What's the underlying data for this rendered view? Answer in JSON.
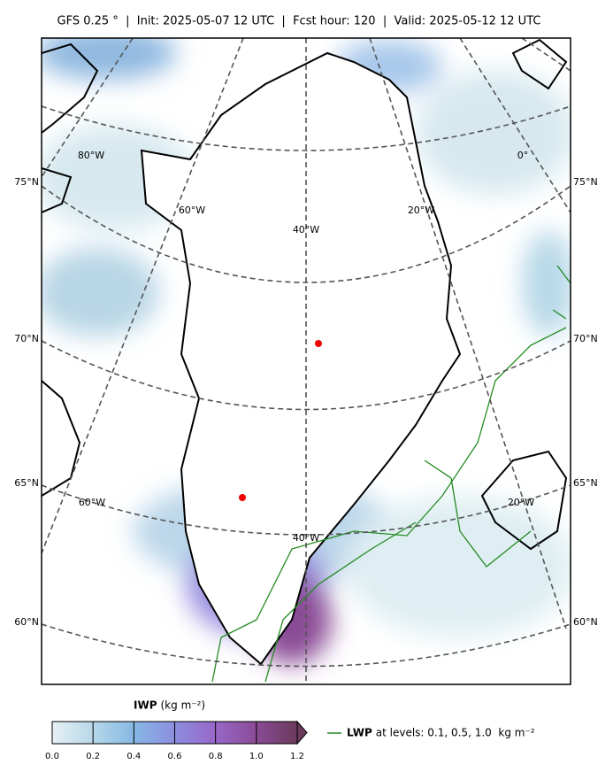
{
  "header": {
    "title": "GFS 0.25 °  |  Init: 2025-05-07 12 UTC  |  Fcst hour: 120  |  Valid: 2025-05-12 12 UTC"
  },
  "map": {
    "lat_labels": [
      "75°N",
      "70°N",
      "65°N",
      "60°N"
    ],
    "lon_labels": [
      "80°W",
      "0°",
      "60°W",
      "20°W",
      "40°W",
      "60°W",
      "20°W",
      "40°W"
    ]
  },
  "colorbar": {
    "label": "IWP",
    "unit": "(kg m⁻²)",
    "lim": [
      0,
      1.2
    ],
    "ticks": [
      {
        "value": 0,
        "label": "0.0"
      },
      0.2,
      0.4,
      0.6,
      0.8,
      {
        "value": 1,
        "label": "1.0"
      },
      1.2
    ],
    "colors": [
      "#e6f1f4",
      "#b7d8e8",
      "#86b8e4",
      "#8c8ee0",
      "#9867c8",
      "#8a4b96",
      "#6a3a5c"
    ]
  },
  "legend": {
    "label": "LWP",
    "text": "at levels: 0.1, 0.5, 1.0  kg m⁻²",
    "color": "#228b22"
  }
}
